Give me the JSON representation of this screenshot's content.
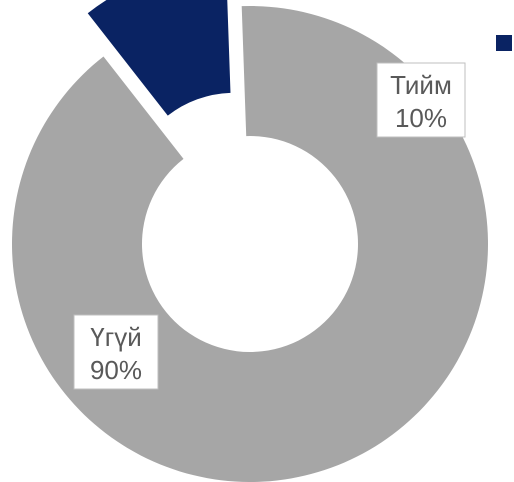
{
  "chart_data": {
    "type": "pie",
    "variant": "donut",
    "exploded": true,
    "title": "",
    "slices": [
      {
        "category": "Тийм",
        "value": 10,
        "label": "10%",
        "color": "#0a2363"
      },
      {
        "category": "Үгүй",
        "value": 90,
        "label": "90%",
        "color": "#a6a6a6"
      }
    ],
    "legend": {
      "placement": "top-right",
      "entries": [
        {
          "color": "#0a2363"
        }
      ]
    }
  }
}
